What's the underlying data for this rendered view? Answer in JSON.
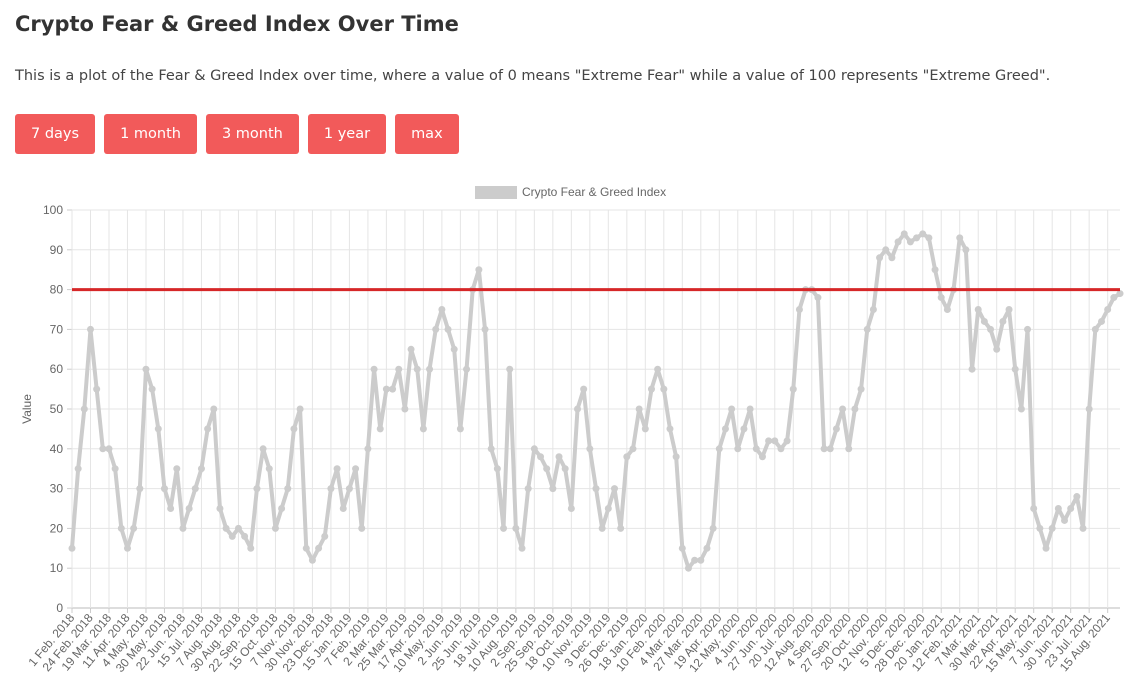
{
  "header": {
    "title": "Crypto Fear & Greed Index Over Time",
    "description": "This is a plot of the Fear & Greed Index over time, where a value of 0 means \"Extreme Fear\" while a value of 100 represents \"Extreme Greed\"."
  },
  "buttons": [
    "7 days",
    "1 month",
    "3 month",
    "1 year",
    "max"
  ],
  "chart_data": {
    "type": "line",
    "y_label": "Value",
    "legend": "top",
    "grid": true,
    "ylim": [
      0,
      100
    ],
    "yticks": [
      0,
      10,
      20,
      30,
      40,
      50,
      60,
      70,
      80,
      90,
      100
    ],
    "threshold": {
      "value": 80,
      "color": "#d62728"
    },
    "categories": [
      "1 Feb. 2018",
      null,
      null,
      "24 Feb. 2018",
      null,
      null,
      "19 Mar. 2018",
      null,
      null,
      "11 Apr. 2018",
      null,
      null,
      "4 May. 2018",
      null,
      null,
      "30 May. 2018",
      null,
      null,
      "22 Jun. 2018",
      null,
      null,
      "15 Jul. 2018",
      null,
      null,
      "7 Aug. 2018",
      null,
      null,
      "30 Aug. 2018",
      null,
      null,
      "22 Sep. 2018",
      null,
      null,
      "15 Oct. 2018",
      null,
      null,
      "7 Nov. 2018",
      null,
      null,
      "30 Nov. 2018",
      null,
      null,
      "23 Dec. 2018",
      null,
      null,
      "15 Jan. 2019",
      null,
      null,
      "7 Feb. 2019",
      null,
      null,
      "2 Mar. 2019",
      null,
      null,
      "25 Mar. 2019",
      null,
      null,
      "17 Apr. 2019",
      null,
      null,
      "10 May. 2019",
      null,
      null,
      "2 Jun. 2019",
      null,
      null,
      "25 Jun. 2019",
      null,
      null,
      "18 Jul. 2019",
      null,
      null,
      "10 Aug. 2019",
      null,
      null,
      "2 Sep. 2019",
      null,
      null,
      "25 Sep. 2019",
      null,
      null,
      "18 Oct. 2019",
      null,
      null,
      "10 Nov. 2019",
      null,
      null,
      "3 Dec. 2019",
      null,
      null,
      "26 Dec. 2019",
      null,
      null,
      "18 Jan. 2020",
      null,
      null,
      "10 Feb. 2020",
      null,
      null,
      "4 Mar. 2020",
      null,
      null,
      "27 Mar. 2020",
      null,
      null,
      "19 Apr. 2020",
      null,
      null,
      "12 May. 2020",
      null,
      null,
      "4 Jun. 2020",
      null,
      null,
      "27 Jun. 2020",
      null,
      null,
      "20 Jul. 2020",
      null,
      null,
      "12 Aug. 2020",
      null,
      null,
      "4 Sep. 2020",
      null,
      null,
      "27 Sep. 2020",
      null,
      null,
      "20 Oct. 2020",
      null,
      null,
      "12 Nov. 2020",
      null,
      null,
      "5 Dec. 2020",
      null,
      null,
      "28 Dec. 2020",
      null,
      null,
      "20 Jan. 2021",
      null,
      null,
      "12 Feb. 2021",
      null,
      null,
      "7 Mar. 2021",
      null,
      null,
      "30 Mar. 2021",
      null,
      null,
      "22 Apr. 2021",
      null,
      null,
      "15 May. 2021",
      null,
      null,
      "7 Jun. 2021",
      null,
      null,
      "30 Jun. 2021",
      null,
      null,
      "23 Jul. 2021",
      null,
      null,
      "15 Aug. 2021",
      null,
      null
    ],
    "series": [
      {
        "name": "Crypto Fear & Greed Index",
        "color": "#cccccc",
        "values": [
          15,
          35,
          50,
          70,
          55,
          40,
          40,
          35,
          20,
          15,
          20,
          30,
          60,
          55,
          45,
          30,
          25,
          35,
          20,
          25,
          30,
          35,
          45,
          50,
          25,
          20,
          18,
          20,
          18,
          15,
          30,
          40,
          35,
          20,
          25,
          30,
          45,
          50,
          15,
          12,
          15,
          18,
          30,
          35,
          25,
          30,
          35,
          20,
          40,
          60,
          45,
          55,
          55,
          60,
          50,
          65,
          60,
          45,
          60,
          70,
          75,
          70,
          65,
          45,
          60,
          80,
          85,
          70,
          40,
          35,
          20,
          60,
          20,
          15,
          30,
          40,
          38,
          35,
          30,
          38,
          35,
          25,
          50,
          55,
          40,
          30,
          20,
          25,
          30,
          20,
          38,
          40,
          50,
          45,
          55,
          60,
          55,
          45,
          38,
          15,
          10,
          12,
          12,
          15,
          20,
          40,
          45,
          50,
          40,
          45,
          50,
          40,
          38,
          42,
          42,
          40,
          42,
          55,
          75,
          80,
          80,
          78,
          40,
          40,
          45,
          50,
          40,
          50,
          55,
          70,
          75,
          88,
          90,
          88,
          92,
          94,
          92,
          93,
          94,
          93,
          85,
          78,
          75,
          80,
          93,
          90,
          60,
          75,
          72,
          70,
          65,
          72,
          75,
          60,
          50,
          70,
          25,
          20,
          15,
          20,
          25,
          22,
          25,
          28,
          20,
          50,
          70,
          72,
          75,
          78,
          79
        ]
      }
    ]
  }
}
